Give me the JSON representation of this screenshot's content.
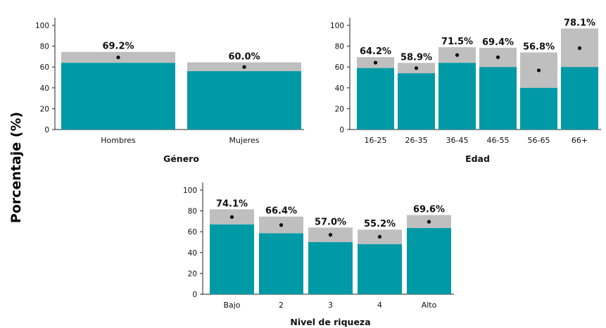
{
  "figure": {
    "ylabel": "Porcentaje (%)",
    "colors": {
      "lower": "#0099a6",
      "upper": "#bfbfbf",
      "marker": "#000000"
    }
  },
  "chart_data": [
    {
      "type": "bar",
      "title": "Género",
      "xlabel": "Género",
      "ylabel": "Porcentaje (%)",
      "ylim": [
        0,
        110
      ],
      "yticks": [
        0,
        20,
        40,
        60,
        80,
        100
      ],
      "categories": [
        "Hombres",
        "Mujeres"
      ],
      "series": [
        {
          "values": [
            64,
            56
          ]
        },
        {
          "values": [
            74.5,
            64.5
          ]
        }
      ],
      "point_values": [
        69.2,
        60.0
      ],
      "labels": [
        "69.2%",
        "60.0%"
      ]
    },
    {
      "type": "bar",
      "title": "Edad",
      "xlabel": "Edad",
      "ylabel": "Porcentaje (%)",
      "ylim": [
        0,
        110
      ],
      "yticks": [
        0,
        20,
        40,
        60,
        80,
        100
      ],
      "categories": [
        "16-25",
        "26-35",
        "36-45",
        "46-55",
        "56-65",
        "66+"
      ],
      "series": [
        {
          "values": [
            59,
            54,
            64,
            60,
            40,
            60
          ]
        },
        {
          "values": [
            69.5,
            64,
            79,
            78.5,
            74,
            97
          ]
        }
      ],
      "point_values": [
        64.2,
        58.9,
        71.5,
        69.4,
        56.8,
        78.1
      ],
      "labels": [
        "64.2%",
        "58.9%",
        "71.5%",
        "69.4%",
        "56.8%",
        "78.1%"
      ]
    },
    {
      "type": "bar",
      "title": "Nivel de riqueza",
      "xlabel": "Nivel de riqueza",
      "ylabel": "Porcentaje (%)",
      "ylim": [
        0,
        110
      ],
      "yticks": [
        0,
        20,
        40,
        60,
        80,
        100
      ],
      "categories": [
        "Bajo",
        "2",
        "3",
        "4",
        "Alto"
      ],
      "series": [
        {
          "values": [
            67,
            58.5,
            50,
            48,
            63.5
          ]
        },
        {
          "values": [
            81.5,
            74.5,
            64,
            62,
            76
          ]
        }
      ],
      "point_values": [
        74.1,
        66.4,
        57.0,
        55.2,
        69.6
      ],
      "labels": [
        "74.1%",
        "66.4%",
        "57.0%",
        "55.2%",
        "69.6%"
      ]
    }
  ]
}
